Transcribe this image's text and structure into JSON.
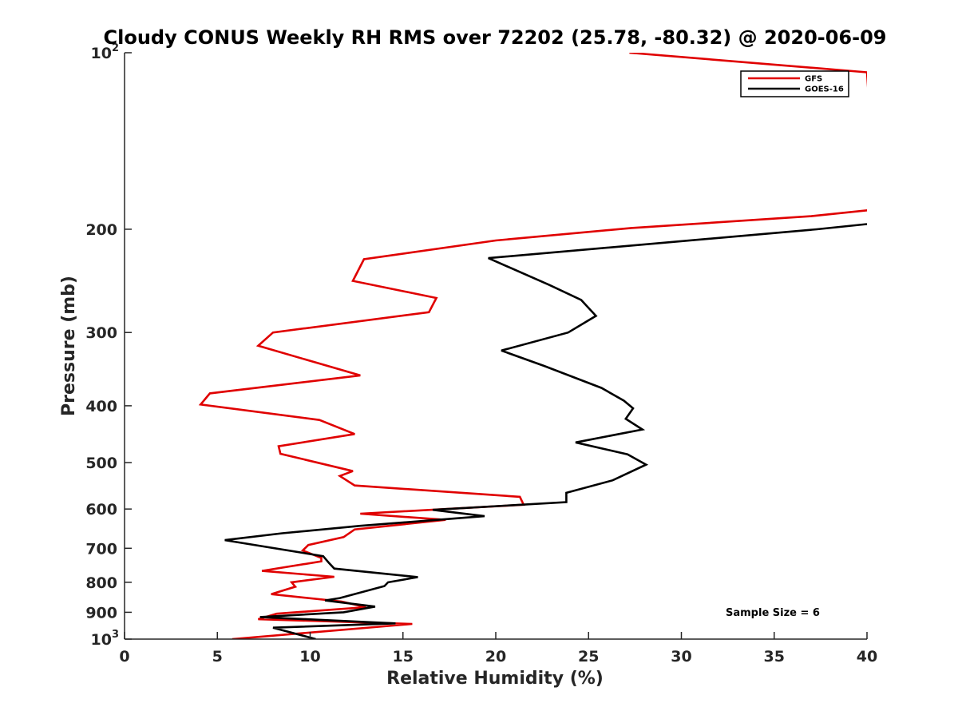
{
  "chart_data": {
    "type": "line",
    "title": "Cloudy CONUS Weekly RH RMS over 72202 (25.78, -80.32) @ 2020-06-09",
    "xlabel": "Relative Humidity (%)",
    "ylabel": "Pressure (mb)",
    "xlim": [
      0,
      40
    ],
    "ylim": [
      100,
      1000
    ],
    "y_scale": "log",
    "y_reversed": true,
    "grid": false,
    "legend_position": "top-right",
    "x_ticks": [
      0,
      5,
      10,
      15,
      20,
      25,
      30,
      35,
      40
    ],
    "y_ticks": [
      {
        "value": 100,
        "label": "10",
        "sup": "2"
      },
      {
        "value": 200,
        "label": "200"
      },
      {
        "value": 300,
        "label": "300"
      },
      {
        "value": 400,
        "label": "400"
      },
      {
        "value": 500,
        "label": "500"
      },
      {
        "value": 600,
        "label": "600"
      },
      {
        "value": 700,
        "label": "700"
      },
      {
        "value": 800,
        "label": "800"
      },
      {
        "value": 900,
        "label": "900"
      },
      {
        "value": 1000,
        "label": "10",
        "sup": "3"
      }
    ],
    "annotation": "Sample Size = 6",
    "series": [
      {
        "name": "GFS",
        "color": "#e00000",
        "points": [
          [
            27.2,
            100
          ],
          [
            40.0,
            108
          ],
          [
            40.5,
            185
          ],
          [
            37.0,
            190
          ],
          [
            27.3,
            199
          ],
          [
            20.0,
            209
          ],
          [
            12.9,
            225
          ],
          [
            12.3,
            245
          ],
          [
            16.8,
            262
          ],
          [
            16.4,
            277
          ],
          [
            8.0,
            300
          ],
          [
            7.2,
            316
          ],
          [
            12.7,
            355
          ],
          [
            4.6,
            381
          ],
          [
            4.1,
            398
          ],
          [
            10.5,
            423
          ],
          [
            12.4,
            447
          ],
          [
            8.3,
            469
          ],
          [
            8.4,
            483
          ],
          [
            12.3,
            517
          ],
          [
            11.6,
            527
          ],
          [
            12.4,
            547
          ],
          [
            21.3,
            572
          ],
          [
            21.5,
            590
          ],
          [
            12.7,
            611
          ],
          [
            17.3,
            626
          ],
          [
            12.4,
            650
          ],
          [
            11.8,
            670
          ],
          [
            9.9,
            691
          ],
          [
            9.6,
            706
          ],
          [
            10.6,
            727
          ],
          [
            10.6,
            737
          ],
          [
            7.4,
            765
          ],
          [
            11.3,
            783
          ],
          [
            9.0,
            800
          ],
          [
            9.2,
            814
          ],
          [
            7.9,
            838
          ],
          [
            11.7,
            863
          ],
          [
            13.0,
            882
          ],
          [
            8.2,
            905
          ],
          [
            7.2,
            925
          ],
          [
            15.5,
            942
          ],
          [
            5.8,
            1000
          ]
        ]
      },
      {
        "name": "GOES-16",
        "color": "#000000",
        "points": [
          [
            40.0,
            196
          ],
          [
            37.3,
            200
          ],
          [
            19.6,
            224
          ],
          [
            22.9,
            249
          ],
          [
            24.6,
            264
          ],
          [
            25.4,
            281
          ],
          [
            23.9,
            300
          ],
          [
            20.3,
            322
          ],
          [
            22.6,
            342
          ],
          [
            25.7,
            373
          ],
          [
            26.9,
            392
          ],
          [
            27.4,
            404
          ],
          [
            27.0,
            421
          ],
          [
            27.9,
            439
          ],
          [
            24.3,
            462
          ],
          [
            27.1,
            484
          ],
          [
            28.1,
            504
          ],
          [
            26.3,
            536
          ],
          [
            23.8,
            563
          ],
          [
            23.8,
            584
          ],
          [
            16.6,
            602
          ],
          [
            19.4,
            617
          ],
          [
            12.7,
            641
          ],
          [
            8.5,
            660
          ],
          [
            5.4,
            678
          ],
          [
            10.7,
            722
          ],
          [
            11.0,
            741
          ],
          [
            11.3,
            758
          ],
          [
            15.8,
            784
          ],
          [
            14.2,
            800
          ],
          [
            14.0,
            812
          ],
          [
            11.6,
            851
          ],
          [
            10.8,
            859
          ],
          [
            13.5,
            880
          ],
          [
            11.8,
            900
          ],
          [
            7.3,
            917
          ],
          [
            10.8,
            928
          ],
          [
            14.6,
            940
          ],
          [
            8.0,
            956
          ],
          [
            10.3,
            1000
          ]
        ]
      }
    ]
  }
}
